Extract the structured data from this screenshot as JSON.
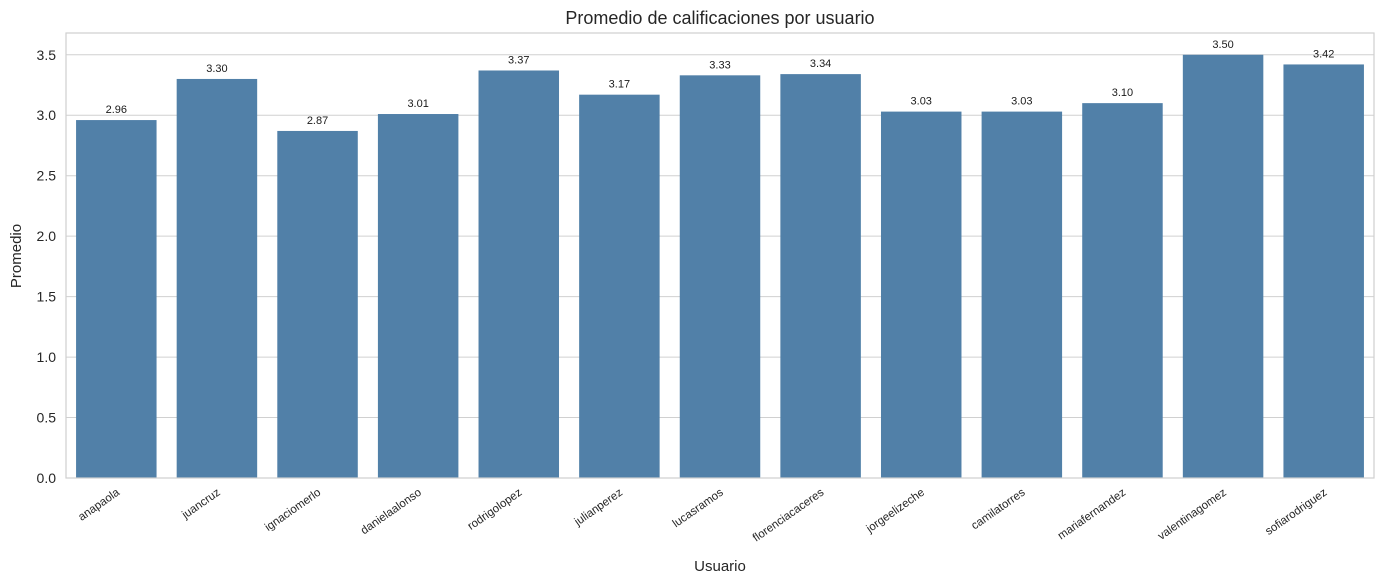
{
  "chart_data": {
    "type": "bar",
    "title": "Promedio de calificaciones por usuario",
    "xlabel": "Usuario",
    "ylabel": "Promedio",
    "categories": [
      "anapaola",
      "juancruz",
      "ignaciomerlo",
      "danielaalonso",
      "rodrigolopez",
      "julianperez",
      "lucasramos",
      "florenciacaceres",
      "jorgeelizeche",
      "camilatorres",
      "mariafernandez",
      "valentinagomez",
      "sofiarodriguez"
    ],
    "values": [
      2.96,
      3.3,
      2.87,
      3.01,
      3.37,
      3.17,
      3.33,
      3.34,
      3.03,
      3.03,
      3.1,
      3.5,
      3.42
    ],
    "value_labels": [
      "2.96",
      "3.30",
      "2.87",
      "3.01",
      "3.37",
      "3.17",
      "3.33",
      "3.34",
      "3.03",
      "3.03",
      "3.10",
      "3.50",
      "3.42"
    ],
    "yticks": [
      0.0,
      0.5,
      1.0,
      1.5,
      2.0,
      2.5,
      3.0,
      3.5
    ],
    "ytick_labels": [
      "0.0",
      "0.5",
      "1.0",
      "1.5",
      "2.0",
      "2.5",
      "3.0",
      "3.5"
    ],
    "ylim": [
      0,
      3.68
    ],
    "grid": "horizontal",
    "bar_color": "#5180a8"
  }
}
